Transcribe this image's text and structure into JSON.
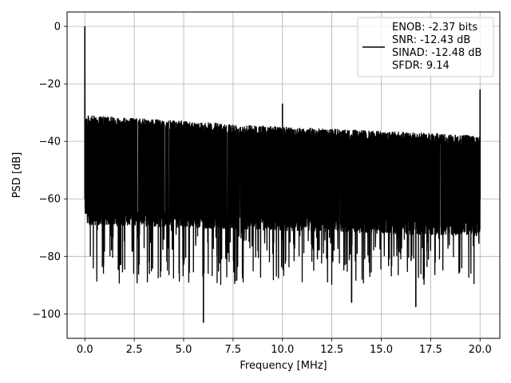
{
  "chart_data": {
    "type": "line",
    "title": "",
    "xlabel": "Frequency [MHz]",
    "ylabel": "PSD [dB]",
    "xlim": [
      -0.9,
      21.0
    ],
    "ylim": [
      -108.5,
      5.0
    ],
    "xticks": [
      0.0,
      2.5,
      5.0,
      7.5,
      10.0,
      12.5,
      15.0,
      17.5,
      20.0
    ],
    "xtick_labels": [
      "0.0",
      "2.5",
      "5.0",
      "7.5",
      "10.0",
      "12.5",
      "15.0",
      "17.5",
      "20.0"
    ],
    "yticks": [
      0,
      -20,
      -40,
      -60,
      -80,
      -100
    ],
    "ytick_labels": [
      "0",
      "−20",
      "−40",
      "−60",
      "−80",
      "−100"
    ],
    "grid": true,
    "legend_position": "top-right",
    "series": [
      {
        "name": "ENOB: -2.37 bits\nSNR: -12.43 dB\nSINAD: -12.48 dB\nSFDR: 9.14",
        "color": "#000000",
        "x_range": [
          0.0,
          20.0
        ],
        "noise_upper_envelope_db": [
          -31,
          -35,
          -38
        ],
        "noise_lower_envelope_db": [
          -64,
          -66,
          -68
        ],
        "noise_floor_min_db": -90,
        "peaks": [
          {
            "x": 0.0,
            "y": 0.0
          },
          {
            "x": 10.0,
            "y": -27.0
          },
          {
            "x": 20.0,
            "y": -22.0
          }
        ],
        "deep_dips": [
          {
            "x": 6.0,
            "y": -103.0
          },
          {
            "x": 16.75,
            "y": -97.5
          },
          {
            "x": 13.5,
            "y": -96.0
          }
        ]
      }
    ]
  }
}
